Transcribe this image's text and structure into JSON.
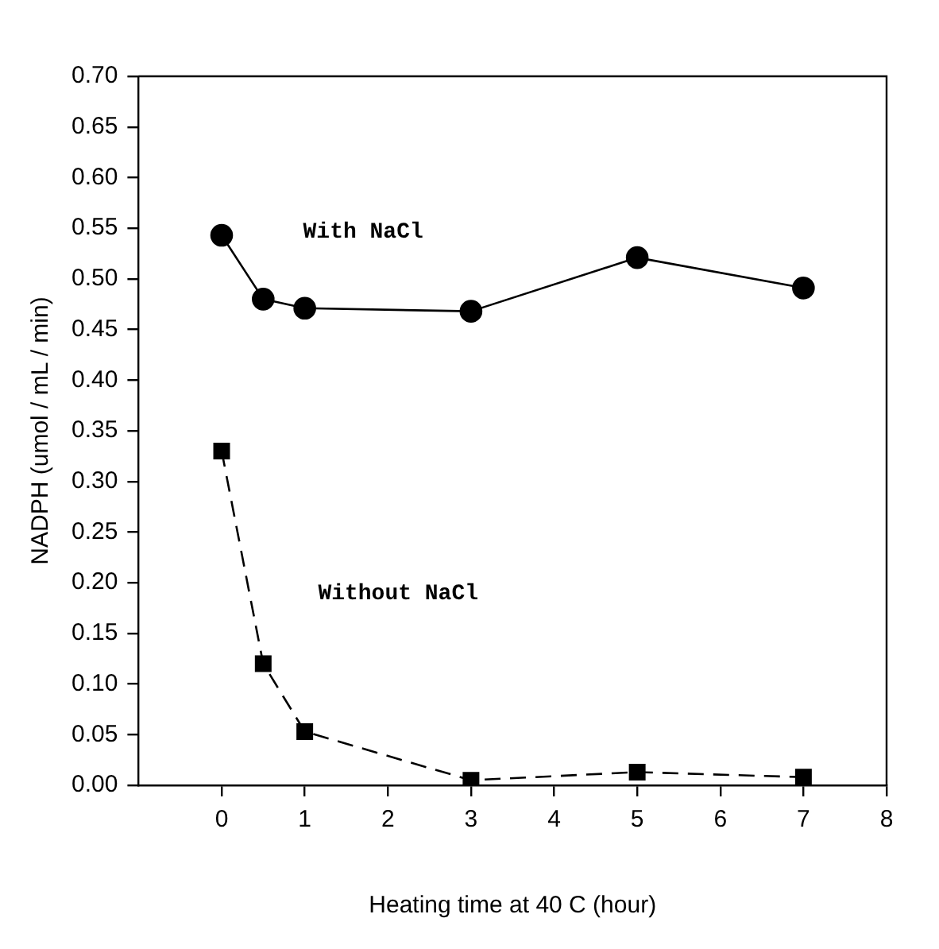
{
  "chart_data": {
    "type": "line",
    "xlabel": "Heating time at 40 C (hour)",
    "ylabel": "NADPH (umol / mL / min)",
    "x": [
      0,
      0.5,
      1,
      3,
      5,
      7
    ],
    "series": [
      {
        "name": "With NaCl",
        "color": "#000000",
        "marker": "circle",
        "line_style": "solid",
        "values": [
          0.543,
          0.48,
          0.471,
          0.468,
          0.521,
          0.491
        ]
      },
      {
        "name": "Without NaCl",
        "color": "#000000",
        "marker": "square",
        "line_style": "dashed",
        "values": [
          0.33,
          0.12,
          0.053,
          0.005,
          0.013,
          0.008
        ]
      }
    ],
    "xlim": [
      -1,
      8
    ],
    "xticks": [
      0,
      1,
      2,
      3,
      4,
      5,
      6,
      7,
      8
    ],
    "ylim": [
      0,
      0.7
    ],
    "yticks": [
      {
        "value": 0,
        "label": "0.00"
      },
      0.05,
      {
        "value": 0.1,
        "label": "0.10"
      },
      0.15,
      {
        "value": 0.2,
        "label": "0.20"
      },
      0.25,
      {
        "value": 0.3,
        "label": "0.30"
      },
      0.35,
      {
        "value": 0.4,
        "label": "0.40"
      },
      0.45,
      {
        "value": 0.5,
        "label": "0.50"
      },
      0.55,
      {
        "value": 0.6,
        "label": "0.60"
      },
      0.65,
      {
        "value": 0.7,
        "label": "0.70"
      }
    ],
    "legend": false
  }
}
